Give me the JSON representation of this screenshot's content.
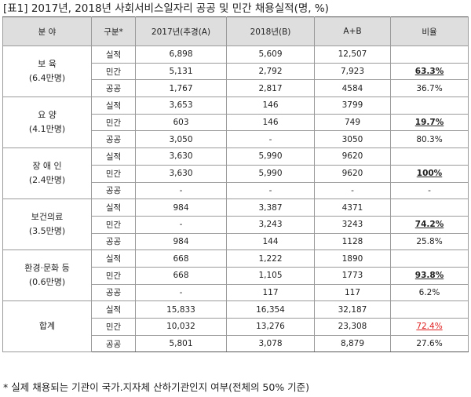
{
  "title": "[표1] 2017년, 2018년 사회서비스일자리 공공 및 민간 채용실적(명, %)",
  "headers": [
    "분 야",
    "구분*",
    "2017년(추경(A)",
    "2018년(B)",
    "A+B",
    "비율"
  ],
  "groups": [
    {
      "name": "보 육",
      "sub": "(6.4만명)",
      "rows": [
        {
          "type": "실적",
          "y2017": "6,898",
          "y2018": "5,609",
          "sum": "12,507",
          "ratio": ""
        },
        {
          "type": "민간",
          "y2017": "5,131",
          "y2018": "2,792",
          "sum": "7,923",
          "ratio": "63.3%"
        },
        {
          "type": "공공",
          "y2017": "1,767",
          "y2018": "2,817",
          "sum": "4584",
          "ratio": "36.7%"
        }
      ]
    },
    {
      "name": "요 양",
      "sub": "(4.1만명)",
      "rows": [
        {
          "type": "실적",
          "y2017": "3,653",
          "y2018": "146",
          "sum": "3799",
          "ratio": ""
        },
        {
          "type": "민간",
          "y2017": "603",
          "y2018": "146",
          "sum": "749",
          "ratio": "19.7%"
        },
        {
          "type": "공공",
          "y2017": "3,050",
          "y2018": "-",
          "sum": "3050",
          "ratio": "80.3%"
        }
      ]
    },
    {
      "name": "장 애 인",
      "sub": "(2.4만명)",
      "rows": [
        {
          "type": "실적",
          "y2017": "3,630",
          "y2018": "5,990",
          "sum": "9620",
          "ratio": ""
        },
        {
          "type": "민간",
          "y2017": "3,630",
          "y2018": "5,990",
          "sum": "9620",
          "ratio": "100%"
        },
        {
          "type": "공공",
          "y2017": "-",
          "y2018": "-",
          "sum": "-",
          "ratio": "-"
        }
      ]
    },
    {
      "name": "보건의료",
      "sub": "(3.5만명)",
      "rows": [
        {
          "type": "실적",
          "y2017": "984",
          "y2018": "3,387",
          "sum": "4371",
          "ratio": ""
        },
        {
          "type": "민간",
          "y2017": "-",
          "y2018": "3,243",
          "sum": "3243",
          "ratio": "74.2%"
        },
        {
          "type": "공공",
          "y2017": "984",
          "y2018": "144",
          "sum": "1128",
          "ratio": "25.8%"
        }
      ]
    },
    {
      "name": "환경·문화 등",
      "sub": "(0.6만명)",
      "rows": [
        {
          "type": "실적",
          "y2017": "668",
          "y2018": "1,222",
          "sum": "1890",
          "ratio": ""
        },
        {
          "type": "민간",
          "y2017": "668",
          "y2018": "1,105",
          "sum": "1773",
          "ratio": "93.8%"
        },
        {
          "type": "공공",
          "y2017": "-",
          "y2018": "117",
          "sum": "117",
          "ratio": "6.2%"
        }
      ]
    },
    {
      "name": "합계",
      "sub": "",
      "rows": [
        {
          "type": "실적",
          "y2017": "15,833",
          "y2018": "16,354",
          "sum": "32,187",
          "ratio": ""
        },
        {
          "type": "민간",
          "y2017": "10,032",
          "y2018": "13,276",
          "sum": "23,308",
          "ratio": "72.4%"
        },
        {
          "type": "공공",
          "y2017": "5,801",
          "y2018": "3,078",
          "sum": "8,879",
          "ratio": "27.6%"
        }
      ]
    }
  ],
  "highlight_color": "#e02020",
  "note": "* 실제 채용되는 기관이 국가.지자체 산하기관인지 여부(전체의 50% 기준)"
}
